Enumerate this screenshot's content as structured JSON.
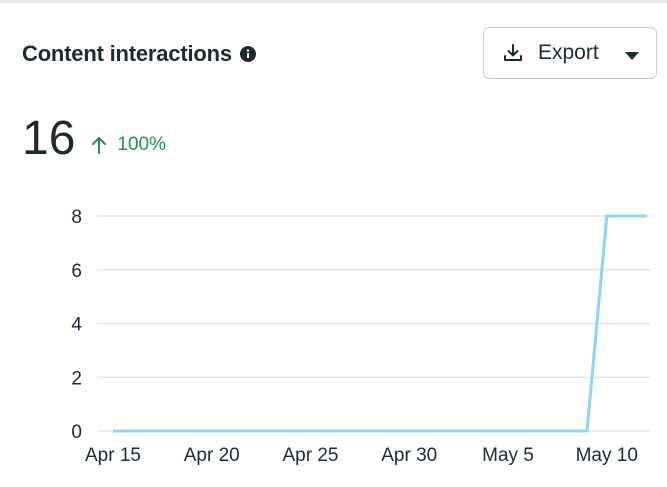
{
  "header": {
    "title": "Content interactions",
    "info_icon": "info-icon",
    "export_label": "Export",
    "export_icon": "download-icon",
    "caret_icon": "caret-down-icon"
  },
  "metric": {
    "value": "16",
    "delta": "100%",
    "delta_direction": "up",
    "delta_color": "#2c8a5a"
  },
  "chart_data": {
    "type": "line",
    "title": "",
    "xlabel": "",
    "ylabel": "",
    "x": [
      "Apr 15",
      "Apr 16",
      "Apr 17",
      "Apr 18",
      "Apr 19",
      "Apr 20",
      "Apr 21",
      "Apr 22",
      "Apr 23",
      "Apr 24",
      "Apr 25",
      "Apr 26",
      "Apr 27",
      "Apr 28",
      "Apr 29",
      "Apr 30",
      "May 1",
      "May 2",
      "May 3",
      "May 4",
      "May 5",
      "May 6",
      "May 7",
      "May 8",
      "May 9",
      "May 10",
      "May 11",
      "May 12"
    ],
    "x_tick_labels": [
      "Apr 15",
      "Apr 20",
      "Apr 25",
      "Apr 30",
      "May 5",
      "May 10"
    ],
    "series": [
      {
        "values": [
          0,
          0,
          0,
          0,
          0,
          0,
          0,
          0,
          0,
          0,
          0,
          0,
          0,
          0,
          0,
          0,
          0,
          0,
          0,
          0,
          0,
          0,
          0,
          0,
          0,
          8,
          8,
          8
        ],
        "color": "#8fd3f5"
      }
    ],
    "ylim": [
      0,
      8
    ],
    "y_ticks": [
      "0",
      "2",
      "4",
      "6",
      "8"
    ],
    "grid": true,
    "legend": "none"
  }
}
